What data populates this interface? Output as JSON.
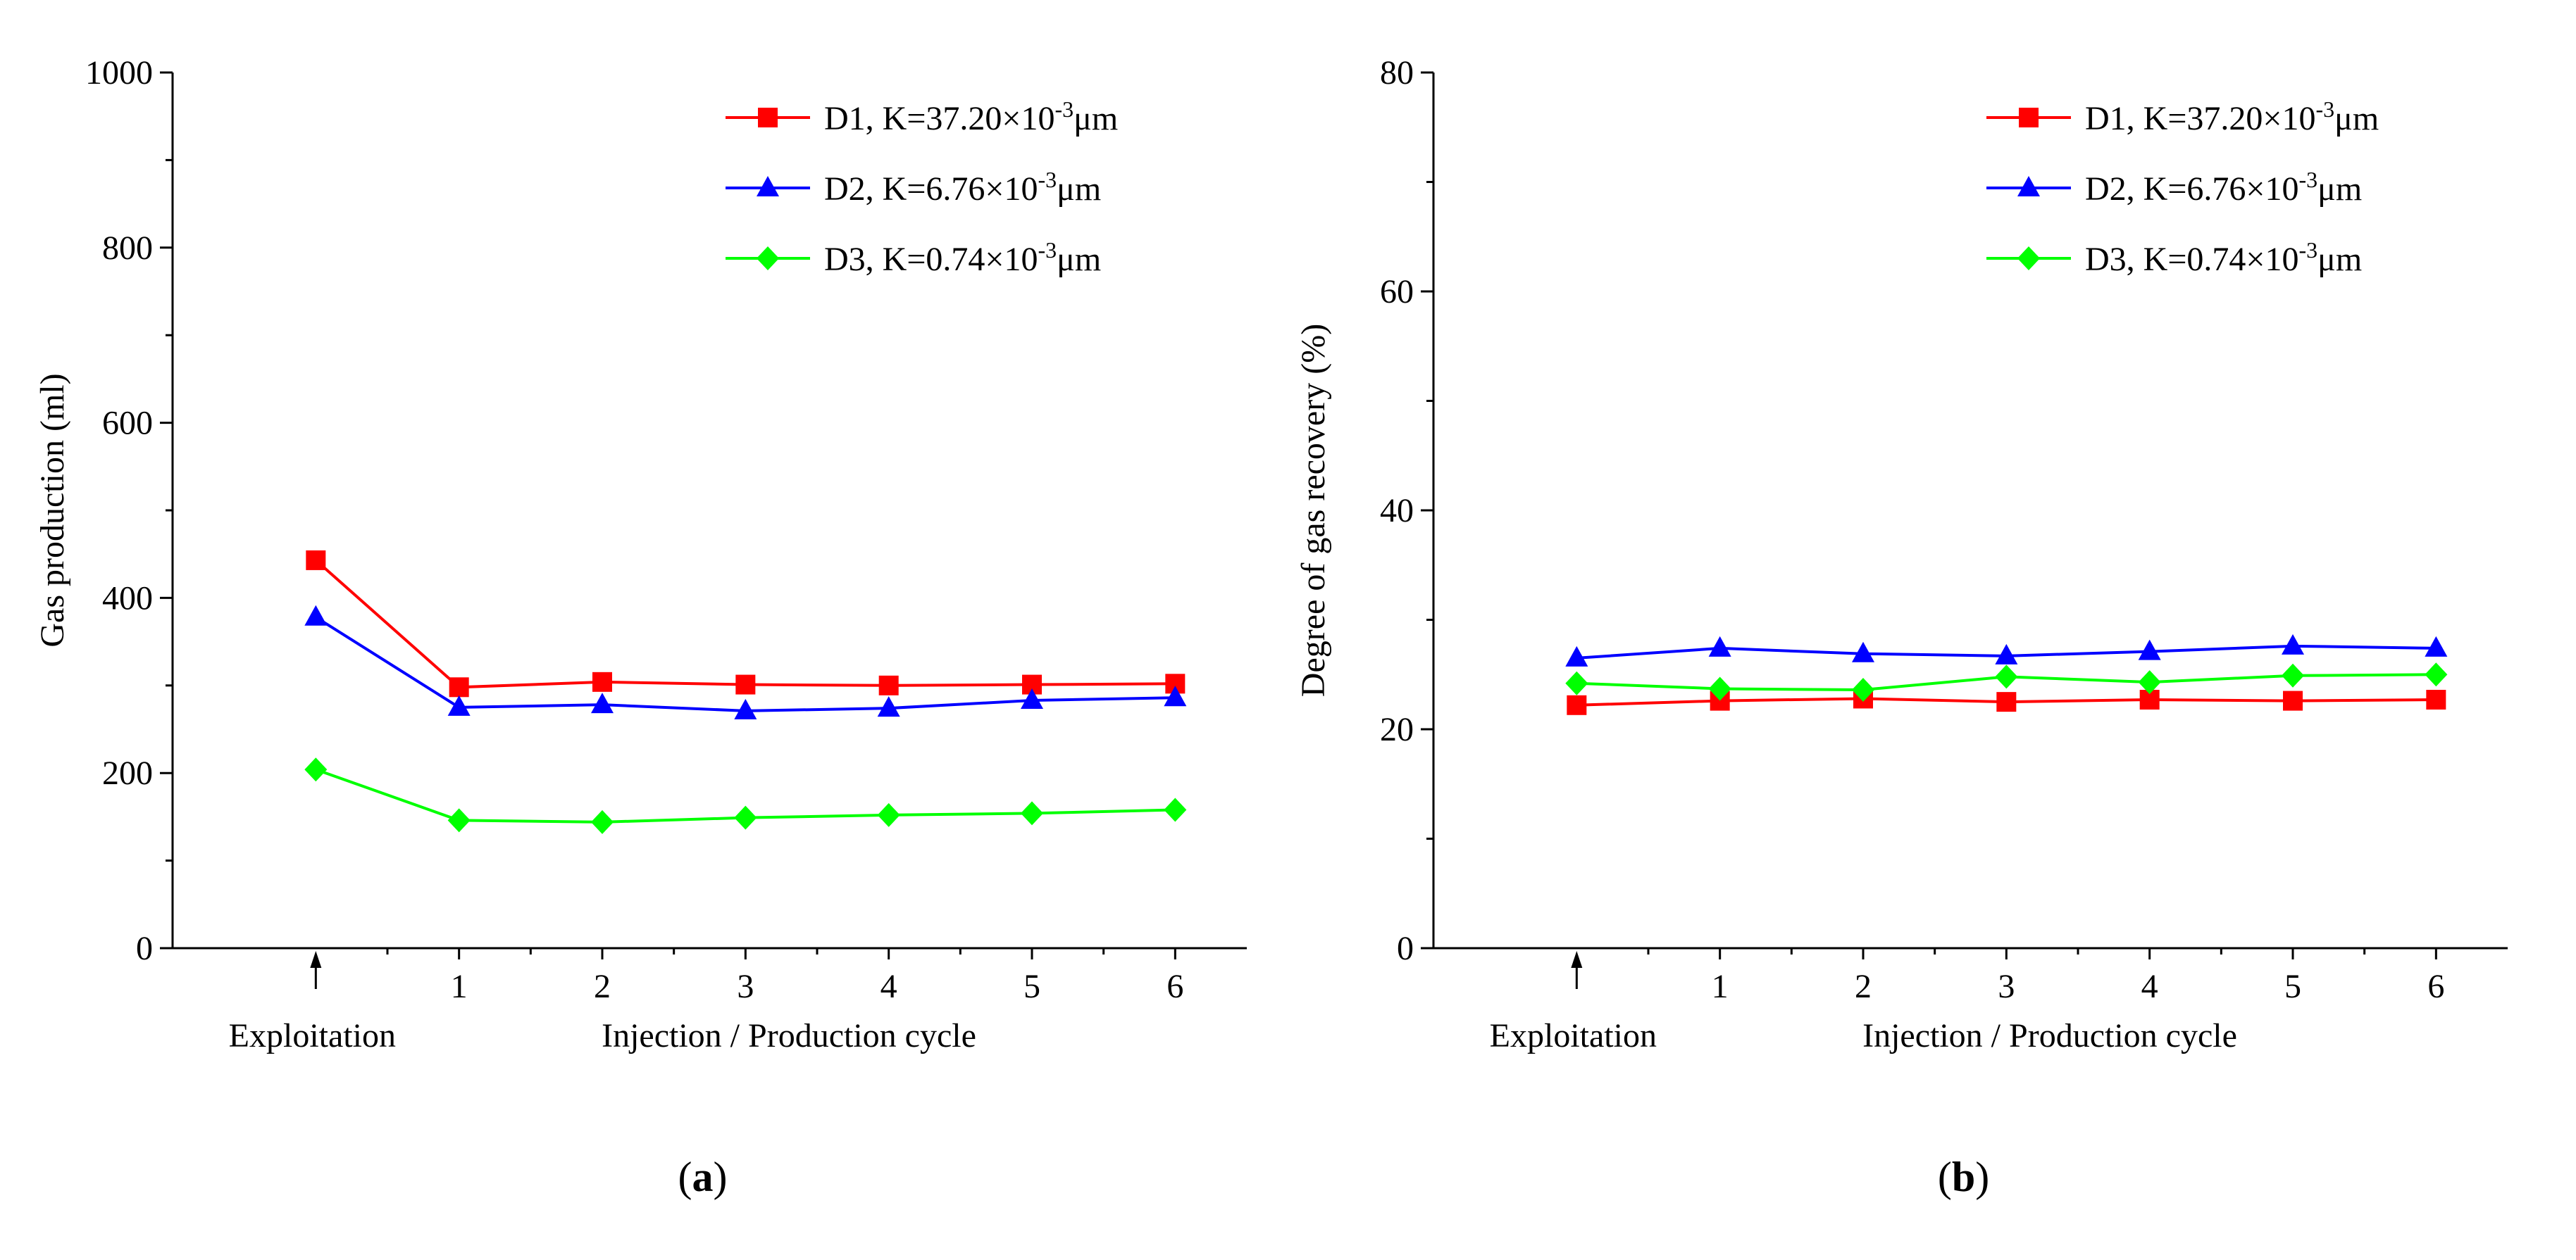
{
  "chart_data": [
    {
      "type": "line",
      "panel": "a",
      "caption": {
        "open": "(",
        "letter": "a",
        "close": ")"
      },
      "ylabel": "Gas production (ml)",
      "xlabel": "Injection / Production cycle",
      "exploitation_label": "Exploitation",
      "ylim": [
        0,
        1000
      ],
      "yticks": [
        0,
        200,
        400,
        600,
        800,
        1000
      ],
      "xlim": [
        -1,
        6.5
      ],
      "x": [
        0,
        1,
        2,
        3,
        4,
        5,
        6
      ],
      "xtick_labels": [
        "1",
        "2",
        "3",
        "4",
        "5",
        "6"
      ],
      "series": [
        {
          "name": "D1",
          "legend": {
            "prefix": "D1, K=37.20×10",
            "sup": "-3",
            "suffix": "μm"
          },
          "color": "#ff0000",
          "marker": "square",
          "values": [
            443,
            298,
            304,
            301,
            300,
            301,
            302
          ]
        },
        {
          "name": "D2",
          "legend": {
            "prefix": "D2, K=6.76×10",
            "sup": "-3",
            "suffix": "μm"
          },
          "color": "#0000ff",
          "marker": "triangle",
          "values": [
            378,
            275,
            278,
            271,
            274,
            283,
            286
          ]
        },
        {
          "name": "D3",
          "legend": {
            "prefix": "D3, K=0.74×10",
            "sup": "-3",
            "suffix": "μm"
          },
          "color": "#00ff00",
          "marker": "diamond",
          "values": [
            204,
            146,
            144,
            149,
            152,
            154,
            158
          ]
        }
      ]
    },
    {
      "type": "line",
      "panel": "b",
      "caption": {
        "open": "(",
        "letter": "b",
        "close": ")"
      },
      "ylabel": "Degree of gas recovery (%)",
      "xlabel": "Injection / Production cycle",
      "exploitation_label": "Exploitation",
      "ylim": [
        0,
        80
      ],
      "yticks": [
        0,
        20,
        40,
        60,
        80
      ],
      "xlim": [
        -1,
        6.5
      ],
      "x": [
        0,
        1,
        2,
        3,
        4,
        5,
        6
      ],
      "xtick_labels": [
        "1",
        "2",
        "3",
        "4",
        "5",
        "6"
      ],
      "series": [
        {
          "name": "D1",
          "legend": {
            "prefix": "D1, K=37.20×10",
            "sup": "-3",
            "suffix": "μm"
          },
          "color": "#ff0000",
          "marker": "square",
          "values": [
            22.2,
            22.6,
            22.8,
            22.5,
            22.7,
            22.6,
            22.7
          ]
        },
        {
          "name": "D2",
          "legend": {
            "prefix": "D2, K=6.76×10",
            "sup": "-3",
            "suffix": "μm"
          },
          "color": "#0000ff",
          "marker": "triangle",
          "values": [
            26.5,
            27.4,
            26.9,
            26.7,
            27.1,
            27.6,
            27.4
          ]
        },
        {
          "name": "D3",
          "legend": {
            "prefix": "D3, K=0.74×10",
            "sup": "-3",
            "suffix": "μm"
          },
          "color": "#00ff00",
          "marker": "diamond",
          "values": [
            24.2,
            23.7,
            23.6,
            24.8,
            24.3,
            24.9,
            25.0
          ]
        }
      ]
    }
  ]
}
